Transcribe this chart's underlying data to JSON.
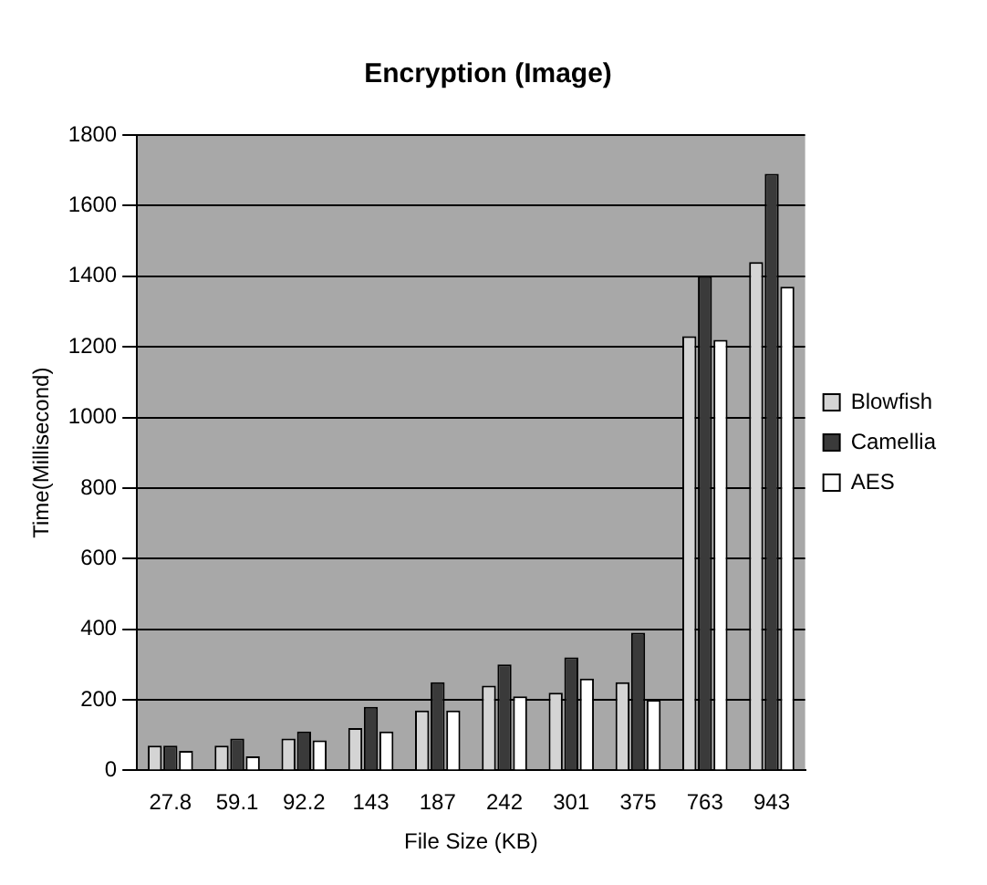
{
  "chart_data": {
    "type": "bar",
    "title": "Encryption (Image)",
    "xlabel": "File Size (KB)",
    "ylabel": "Time(Millisecond)",
    "categories": [
      "27.8",
      "59.1",
      "92.2",
      "143",
      "187",
      "242",
      "301",
      "375",
      "763",
      "943"
    ],
    "series": [
      {
        "name": "Blowfish",
        "color": "#d4d4d4",
        "values": [
          70,
          70,
          90,
          120,
          170,
          240,
          220,
          250,
          1230,
          1440
        ]
      },
      {
        "name": "Camellia",
        "color": "#3a3a3a",
        "values": [
          70,
          90,
          110,
          180,
          250,
          300,
          320,
          390,
          1400,
          1690
        ]
      },
      {
        "name": "AES",
        "color": "#ffffff",
        "values": [
          55,
          40,
          85,
          110,
          170,
          210,
          260,
          200,
          1220,
          1370
        ]
      }
    ],
    "ylim": [
      0,
      1800
    ],
    "yticks": [
      0,
      200,
      400,
      600,
      800,
      1000,
      1200,
      1400,
      1600,
      1800
    ],
    "grid": "y",
    "legend": "right"
  }
}
